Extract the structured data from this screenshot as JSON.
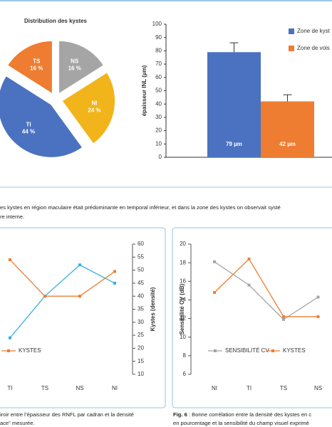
{
  "chart_data": [
    {
      "type": "pie",
      "title": "Distribution des kystes",
      "categories": [
        "NS",
        "NI",
        "TI",
        "TS"
      ],
      "values": [
        16,
        24,
        44,
        16
      ],
      "value_labels": [
        "16 %",
        "24 %",
        "44 %",
        "16 %"
      ],
      "colors": [
        "#a5a5a5",
        "#f2b41b",
        "#4a72c0",
        "#ee7d31"
      ]
    },
    {
      "type": "bar",
      "y_label": "épaisseur INL (µm)",
      "ylim": [
        0,
        100
      ],
      "yticks": [
        0,
        10,
        20,
        30,
        40,
        50,
        60,
        70,
        80,
        90,
        100
      ],
      "series": [
        {
          "name": "Zone de kyst",
          "color": "#4a72c0",
          "values": [
            79
          ],
          "errors": [
            7
          ],
          "value_labels": [
            "79 µm"
          ]
        },
        {
          "name": "Zone de vois",
          "color": "#ee7d31",
          "values": [
            42
          ],
          "errors": [
            5
          ],
          "value_labels": [
            "42 µm"
          ]
        }
      ]
    },
    {
      "type": "line",
      "y_label": "Kystes (densité)",
      "categories": [
        "TI",
        "TS",
        "NS",
        "NI"
      ],
      "ylim": [
        10,
        60
      ],
      "yticks": [
        10,
        15,
        20,
        25,
        30,
        35,
        40,
        45,
        50,
        55,
        60
      ],
      "series": [
        {
          "color": "#35aee3",
          "values": [
            24,
            40,
            52,
            45
          ]
        },
        {
          "name": "KYSTES",
          "color": "#ee7d31",
          "values": [
            54,
            40,
            40,
            49.5
          ]
        }
      ]
    },
    {
      "type": "line",
      "y_label": "Sensibilité CV (dB)",
      "categories": [
        "NI",
        "TI",
        "TS",
        "NS"
      ],
      "ylim": [
        6,
        20
      ],
      "yticks": [
        6,
        8,
        10,
        12,
        14,
        16,
        18,
        20
      ],
      "series": [
        {
          "name": "SENSIBILITÉ CV",
          "color": "#a5a5a5",
          "values": [
            18.1,
            15.6,
            11.9,
            14.3
          ]
        },
        {
          "name": "KYSTES",
          "color": "#ee7d31",
          "values": [
            14.8,
            18.4,
            12.2,
            12.2
          ]
        }
      ]
    }
  ],
  "captions": {
    "top": [
      "es kystes en région maculaire était prédominante en temporal inférieur, et dans la zone des kystes on observait systé",
      "re interne."
    ],
    "left": [
      "iroir entre l’épaisseur des RNFL par cadran et la densité",
      "ace” mesurée."
    ],
    "right": {
      "figure": "Fig. 6",
      "lines": [
        " : Bonne corrélation entre la densité des kystes en c",
        "en pourcentage et la sensibilité du champ visuel exprimé"
      ]
    }
  }
}
